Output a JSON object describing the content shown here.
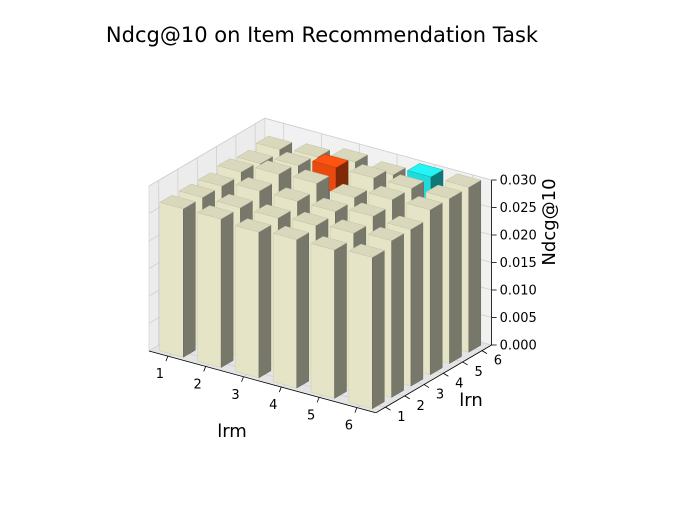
{
  "chart_data": {
    "type": "bar3d",
    "title": "Ndcg@10 on Item Recommendation Task",
    "xlabel": "lrm",
    "ylabel": "lrn",
    "zlabel": "Ndcg@10",
    "x_categories": [
      "1",
      "2",
      "3",
      "4",
      "5",
      "6"
    ],
    "y_categories": [
      "1",
      "2",
      "3",
      "4",
      "5",
      "6"
    ],
    "zlim": [
      0,
      0.03
    ],
    "z_ticks": [
      "0.000",
      "0.005",
      "0.010",
      "0.015",
      "0.020",
      "0.025",
      "0.030"
    ],
    "values": [
      [
        0.027,
        0.027,
        0.027,
        0.0275,
        0.027,
        0.0275
      ],
      [
        0.027,
        0.027,
        0.028,
        0.029,
        0.0285,
        0.028
      ],
      [
        0.0265,
        0.027,
        0.028,
        0.0292,
        0.03,
        0.029
      ],
      [
        0.027,
        0.0275,
        0.028,
        0.0285,
        0.03,
        0.0285
      ],
      [
        0.027,
        0.028,
        0.029,
        0.03,
        0.03,
        0.03
      ],
      [
        0.0275,
        0.0285,
        0.0285,
        0.03,
        0.03,
        0.03
      ]
    ],
    "highlights": [
      {
        "x": "3",
        "y": "5",
        "color": "#e84a10"
      },
      {
        "x": "5",
        "y": "6",
        "color": "#1fdbdb"
      }
    ],
    "bar_color": "#e6e4c6",
    "grid": true
  }
}
